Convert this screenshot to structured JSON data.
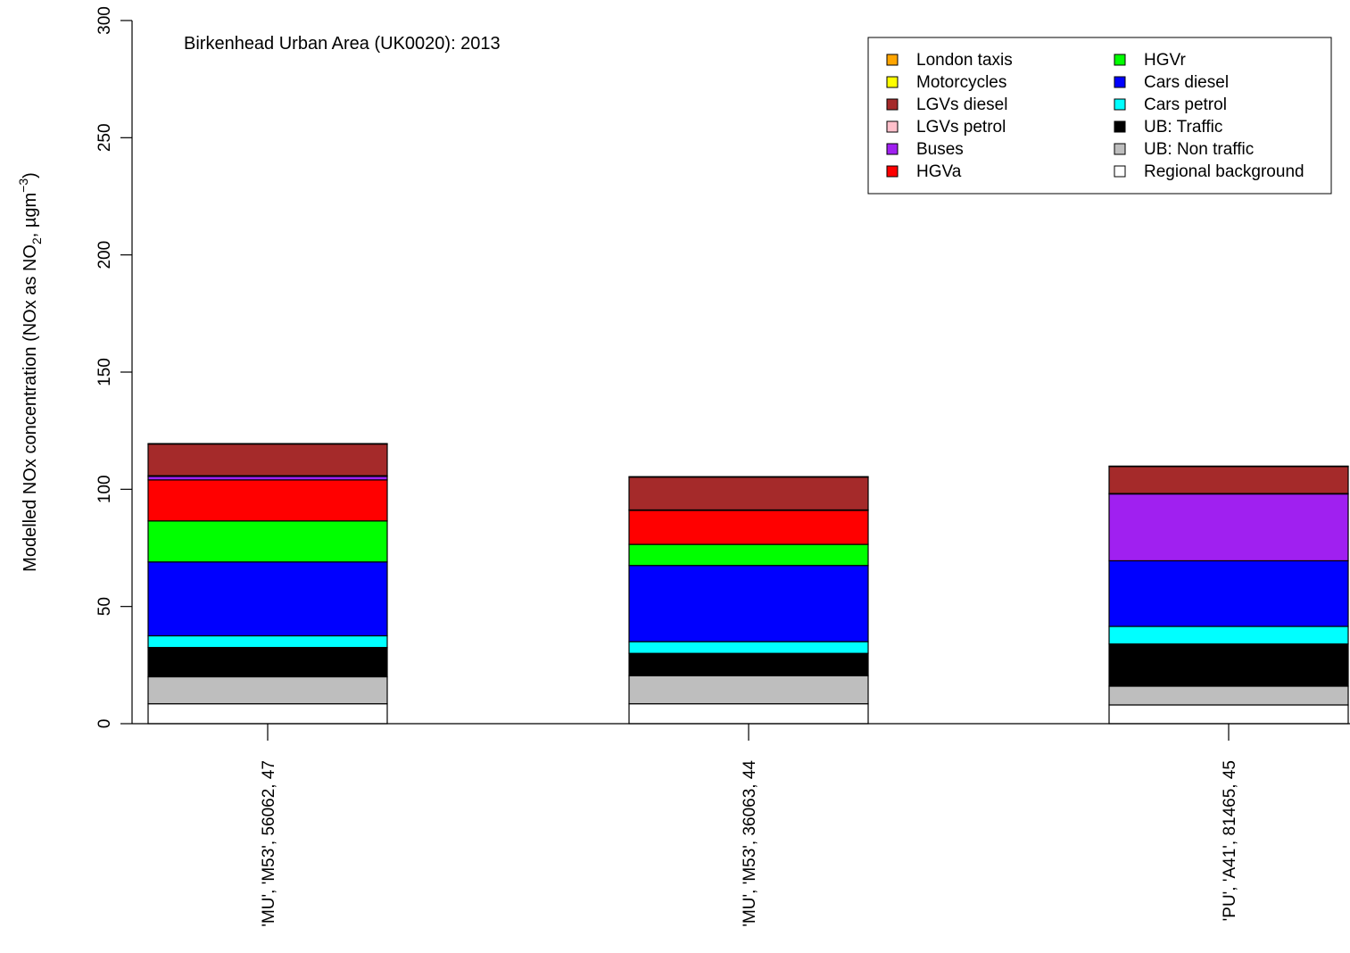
{
  "chart_data": {
    "type": "bar",
    "stacked": true,
    "title": "Birkenhead Urban Area (UK0020): 2013",
    "xlabel": "",
    "ylabel": {
      "main": "Modelled NOx concentration (NOx as NO",
      "sub1": "2",
      "mid": ", µgm",
      "sup": "−3",
      "end": ")"
    },
    "ylim": [
      0,
      300
    ],
    "yticks": [
      "0",
      "50",
      "100",
      "150",
      "200",
      "250",
      "300"
    ],
    "grid": false,
    "legend_position": "top-right",
    "categories": [
      "'MU', 'M53', 56062, 47",
      "'MU', 'M53', 36063, 44",
      "'PU', 'A41', 81465, 45"
    ],
    "series": [
      {
        "name": "Regional background",
        "color": "#ffffff",
        "values": [
          8.5,
          8.5,
          8
        ]
      },
      {
        "name": "UB: Non traffic",
        "color": "#bebebe",
        "values": [
          11.5,
          12,
          8
        ]
      },
      {
        "name": "UB: Traffic",
        "color": "#000000",
        "values": [
          12.5,
          9.5,
          18
        ]
      },
      {
        "name": "Cars petrol",
        "color": "#00ffff",
        "values": [
          5,
          5,
          7.5
        ]
      },
      {
        "name": "Cars diesel",
        "color": "#0000ff",
        "values": [
          31.5,
          32.5,
          28
        ]
      },
      {
        "name": "HGVr",
        "color": "#00ff00",
        "values": [
          17.5,
          9,
          0
        ]
      },
      {
        "name": "HGVa",
        "color": "#ff0000",
        "values": [
          17.5,
          14.5,
          0
        ]
      },
      {
        "name": "Buses",
        "color": "#a020f0",
        "values": [
          1.5,
          0,
          28.5
        ]
      },
      {
        "name": "LGVs petrol",
        "color": "#ffc0cb",
        "values": [
          0.3,
          0.2,
          0.2
        ]
      },
      {
        "name": "LGVs diesel",
        "color": "#a52a2a",
        "values": [
          13.5,
          14,
          11.5
        ]
      },
      {
        "name": "Motorcycles",
        "color": "#ffff00",
        "values": [
          0.2,
          0.2,
          0.2
        ]
      },
      {
        "name": "London taxis",
        "color": "#ffa500",
        "values": [
          0,
          0,
          0
        ]
      }
    ],
    "legend_order": [
      "London taxis",
      "Motorcycles",
      "LGVs diesel",
      "LGVs petrol",
      "Buses",
      "HGVa",
      "HGVr",
      "Cars diesel",
      "Cars petrol",
      "UB: Traffic",
      "UB: Non traffic",
      "Regional background"
    ]
  }
}
